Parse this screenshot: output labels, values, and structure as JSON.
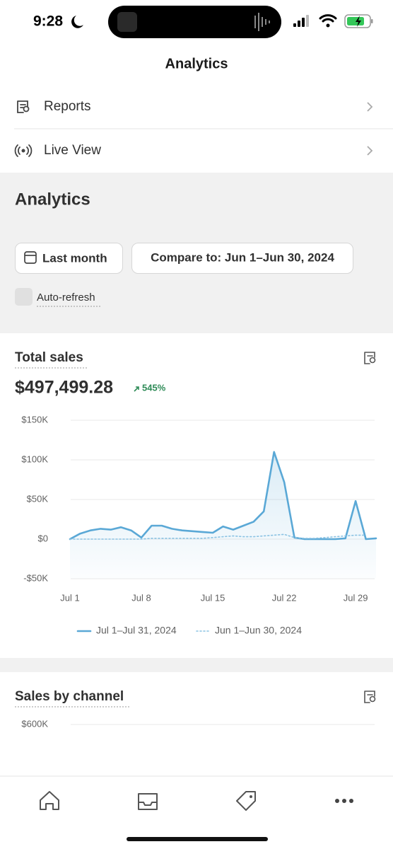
{
  "status_bar": {
    "time": "9:28"
  },
  "header": {
    "title": "Analytics"
  },
  "menu": [
    {
      "label": "Reports"
    },
    {
      "label": "Live View"
    }
  ],
  "analytics": {
    "heading": "Analytics",
    "date_range": "Last month",
    "compare": "Compare to: Jun 1–Jun 30, 2024",
    "auto_refresh": "Auto-refresh"
  },
  "total_sales": {
    "title": "Total sales",
    "amount": "$497,499.28",
    "change": "545%"
  },
  "chart_data": {
    "type": "line",
    "categories": [
      "Jul 1",
      null,
      null,
      null,
      null,
      null,
      null,
      "Jul 8",
      null,
      null,
      null,
      null,
      null,
      null,
      "Jul 15",
      null,
      null,
      null,
      null,
      null,
      null,
      "Jul 22",
      null,
      null,
      null,
      null,
      null,
      null,
      "Jul 29",
      null,
      null
    ],
    "series": [
      {
        "name": "Jul 1–Jul 31, 2024",
        "color": "#5aa8d6",
        "style": "solid",
        "values": [
          0,
          7000,
          11000,
          13000,
          12000,
          15000,
          11000,
          2000,
          17000,
          17000,
          13000,
          11000,
          10000,
          9000,
          8000,
          16000,
          12000,
          17000,
          22000,
          35000,
          110000,
          72000,
          2000,
          0,
          0,
          0,
          0,
          1000,
          48000,
          0,
          1000
        ]
      },
      {
        "name": "Jun 1–Jun 30, 2024",
        "color": "#8cc3e3",
        "style": "dotted",
        "values": [
          0,
          0,
          0,
          0,
          0,
          0,
          0,
          0,
          1000,
          1000,
          1000,
          1000,
          1000,
          1000,
          2000,
          3000,
          4000,
          3000,
          3000,
          4000,
          5000,
          6000,
          2000,
          1000,
          1000,
          2000,
          3000,
          4000,
          5000,
          5000,
          null
        ]
      }
    ],
    "ylim": [
      -50000,
      150000
    ],
    "yticks": [
      {
        "value": -50000,
        "label": "-$50K"
      },
      {
        "value": 0,
        "label": "$0"
      },
      {
        "value": 50000,
        "label": "$50K"
      },
      {
        "value": 100000,
        "label": "$100K"
      },
      {
        "value": 150000,
        "label": "$150K"
      }
    ],
    "grid": true
  },
  "sales_by_channel": {
    "title": "Sales by channel",
    "top_tick": "$600K"
  }
}
